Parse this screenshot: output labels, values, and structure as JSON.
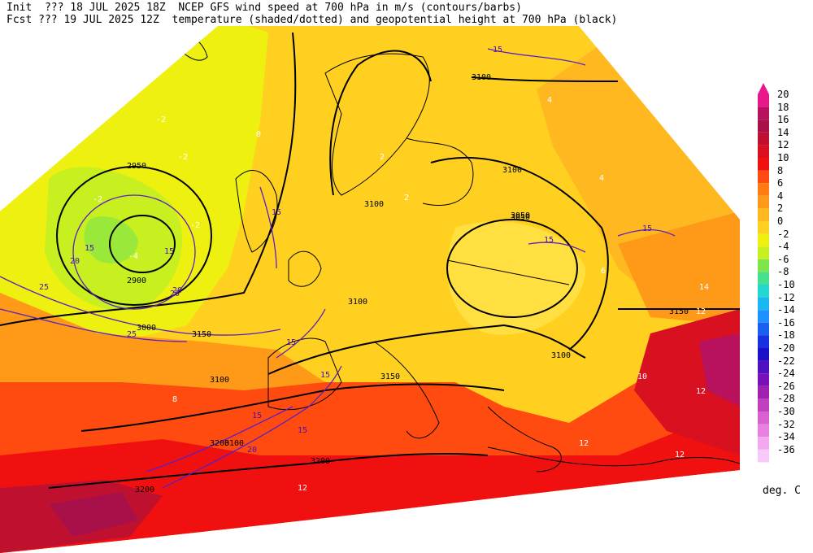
{
  "header": {
    "line1": "Init  ??? 18 JUL 2025 18Z  NCEP GFS wind speed at 700 hPa in m/s (contours/barbs)",
    "line2": "Fcst ??? 19 JUL 2025 12Z  temperature (shaded/dotted) and geopotential height at 700 hPa (black)"
  },
  "colorbar": {
    "unit": "deg. C",
    "levels": [
      "20",
      "18",
      "16",
      "14",
      "12",
      "10",
      "8",
      "6",
      "4",
      "2",
      "0",
      "-2",
      "-4",
      "-6",
      "-8",
      "-10",
      "-12",
      "-14",
      "-16",
      "-18",
      "-20",
      "-22",
      "-24",
      "-26",
      "-28",
      "-30",
      "-32",
      "-34",
      "-36"
    ],
    "colors": [
      "#e8178a",
      "#b8125e",
      "#a8104a",
      "#c01030",
      "#d81020",
      "#f01010",
      "#ff4a10",
      "#ff7a10",
      "#ff9a18",
      "#ffb820",
      "#ffd020",
      "#eef010",
      "#c8f020",
      "#7ee64a",
      "#46e090",
      "#22d8d0",
      "#1ab8f0",
      "#1e90ff",
      "#1a60f0",
      "#1830e0",
      "#1a10c8",
      "#5010c0",
      "#7a10b8",
      "#a020b0",
      "#c040c0",
      "#d860d0",
      "#e880e0",
      "#f4a8f0",
      "#f8c8f8"
    ]
  },
  "map": {
    "height_labels": [
      "2950",
      "2900",
      "3000",
      "3050",
      "3100",
      "3100",
      "3100",
      "3100",
      "3050",
      "3100",
      "3100",
      "3150",
      "3150",
      "3150",
      "3100",
      "3200",
      "3200",
      "3200"
    ],
    "wind_labels": [
      "15",
      "15",
      "20",
      "25",
      "20",
      "25",
      "15",
      "15",
      "15",
      "15",
      "20",
      "15",
      "20",
      "15",
      "15",
      "15"
    ],
    "temp_labels": [
      "-2",
      "-2",
      "-2",
      "-4",
      "-2",
      "0",
      "2",
      "2",
      "4",
      "4",
      "6",
      "8",
      "10",
      "12",
      "12",
      "14",
      "12",
      "12",
      "12"
    ]
  }
}
